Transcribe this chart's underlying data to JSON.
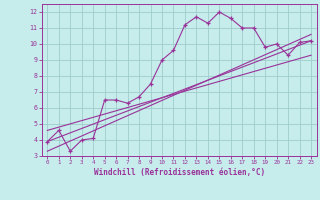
{
  "xlabel": "Windchill (Refroidissement éolien,°C)",
  "xlim": [
    -0.5,
    23.5
  ],
  "ylim": [
    3,
    12.5
  ],
  "xticks": [
    0,
    1,
    2,
    3,
    4,
    5,
    6,
    7,
    8,
    9,
    10,
    11,
    12,
    13,
    14,
    15,
    16,
    17,
    18,
    19,
    20,
    21,
    22,
    23
  ],
  "yticks": [
    3,
    4,
    5,
    6,
    7,
    8,
    9,
    10,
    11,
    12
  ],
  "background_color": "#c6ecec",
  "grid_color": "#a0cccc",
  "line_color": "#993399",
  "series1_x": [
    0,
    1,
    2,
    3,
    4,
    5,
    6,
    7,
    8,
    9,
    10,
    11,
    12,
    13,
    14,
    15,
    16,
    17,
    18,
    19,
    20,
    21,
    22,
    23
  ],
  "series1_y": [
    3.9,
    4.6,
    3.3,
    4.0,
    4.1,
    6.5,
    6.5,
    6.3,
    6.7,
    7.5,
    9.0,
    9.6,
    11.2,
    11.7,
    11.3,
    12.0,
    11.6,
    11.0,
    11.0,
    9.8,
    10.0,
    9.3,
    10.1,
    10.2
  ],
  "series2_x": [
    0,
    23
  ],
  "series2_y": [
    3.9,
    10.2
  ],
  "series3_x": [
    0,
    23
  ],
  "series3_y": [
    3.3,
    10.6
  ],
  "series4_x": [
    0,
    23
  ],
  "series4_y": [
    4.6,
    9.3
  ]
}
